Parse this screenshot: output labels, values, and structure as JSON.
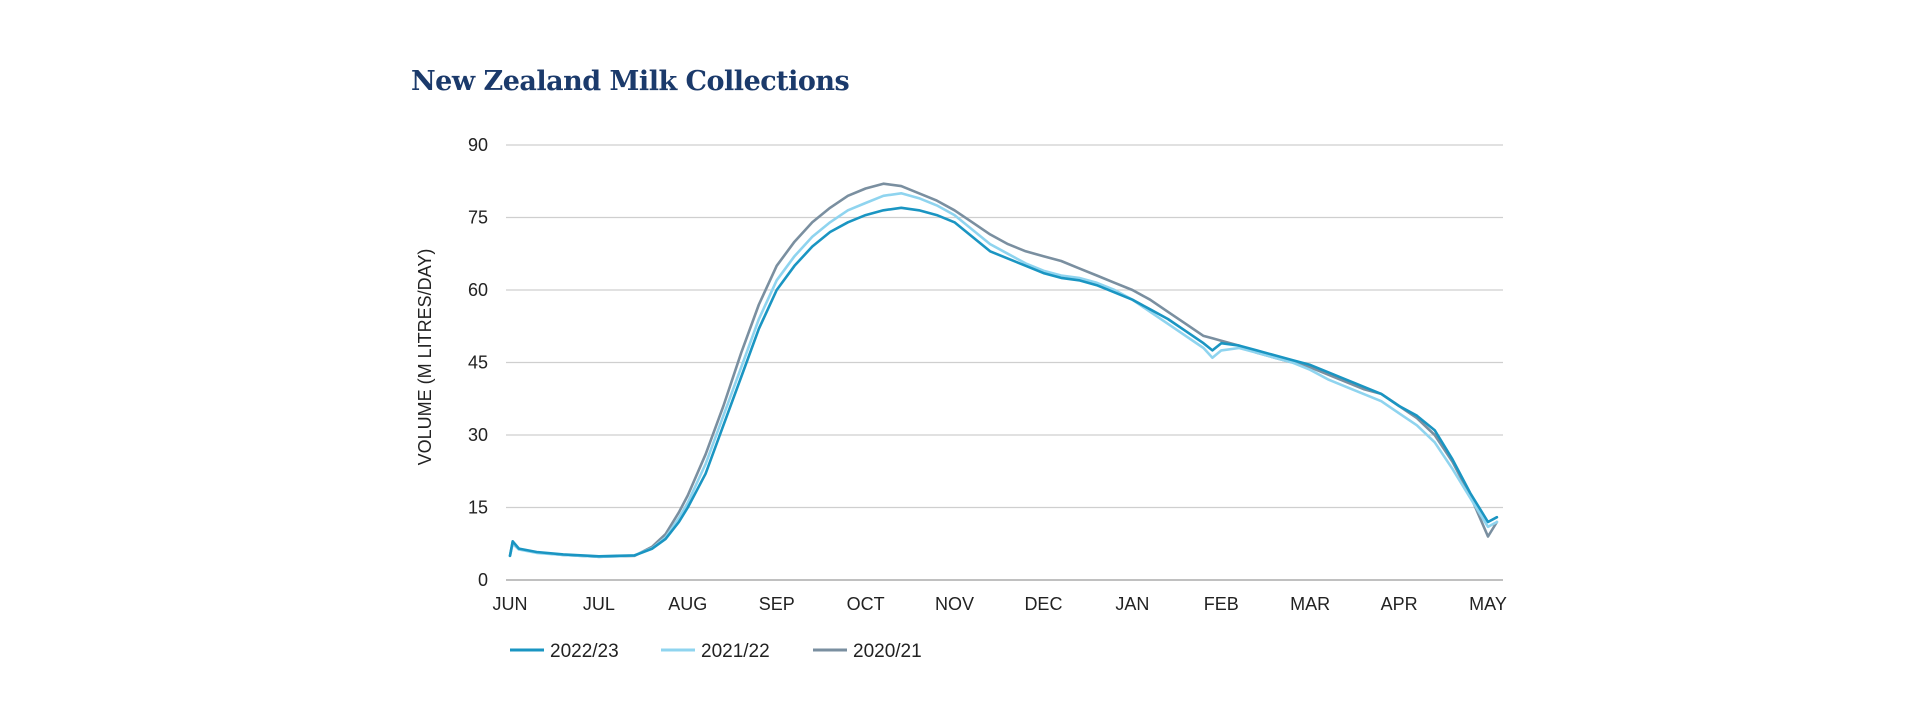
{
  "chart_data": {
    "type": "line",
    "title": "New Zealand Milk Collections",
    "ylabel": "VOLUME (M LITRES/DAY)",
    "xlabel": "",
    "ylim": [
      0,
      90
    ],
    "yticks": [
      0,
      15,
      30,
      45,
      60,
      75,
      90
    ],
    "categories": [
      "JUN",
      "JUL",
      "AUG",
      "SEP",
      "OCT",
      "NOV",
      "DEC",
      "JAN",
      "FEB",
      "MAR",
      "APR",
      "MAY"
    ],
    "grid": true,
    "legend_position": "bottom-left",
    "series": [
      {
        "name": "2022/23",
        "color": "#1a95c2",
        "x": [
          0,
          0.03,
          0.1,
          0.3,
          0.6,
          0.9,
          1.0,
          1.2,
          1.4,
          1.6,
          1.75,
          1.9,
          2.0,
          2.2,
          2.4,
          2.6,
          2.8,
          3.0,
          3.2,
          3.4,
          3.6,
          3.8,
          4.0,
          4.2,
          4.4,
          4.6,
          4.8,
          5.0,
          5.2,
          5.4,
          5.6,
          5.8,
          6.0,
          6.2,
          6.4,
          6.6,
          6.8,
          7.0,
          7.2,
          7.4,
          7.6,
          7.8,
          7.9,
          8.0,
          8.2,
          8.4,
          8.6,
          8.8,
          9.0,
          9.2,
          9.4,
          9.6,
          9.8,
          10.0,
          10.2,
          10.4,
          10.6,
          10.8,
          11.0,
          11.1
        ],
        "values": [
          5,
          8,
          6.5,
          5.8,
          5.3,
          5.0,
          4.9,
          5.0,
          5.1,
          6.5,
          8.5,
          12,
          15,
          22,
          32,
          42,
          52,
          60,
          65,
          69,
          72,
          74,
          75.5,
          76.5,
          77,
          76.5,
          75.5,
          74,
          71,
          68,
          66.5,
          65,
          63.5,
          62.5,
          62,
          61,
          59.5,
          58,
          56,
          54,
          51.5,
          49,
          47.5,
          49,
          48.5,
          47.5,
          46.5,
          45.5,
          44.5,
          43,
          41.5,
          40,
          38.5,
          36,
          34,
          31,
          25,
          18,
          12,
          13
        ]
      },
      {
        "name": "2021/22",
        "color": "#8fd4ef",
        "x": [
          0,
          0.03,
          0.1,
          0.3,
          0.6,
          0.9,
          1.0,
          1.2,
          1.4,
          1.6,
          1.75,
          1.9,
          2.0,
          2.2,
          2.4,
          2.6,
          2.8,
          3.0,
          3.2,
          3.4,
          3.6,
          3.8,
          4.0,
          4.2,
          4.4,
          4.6,
          4.8,
          5.0,
          5.2,
          5.4,
          5.6,
          5.8,
          6.0,
          6.2,
          6.4,
          6.6,
          6.8,
          7.0,
          7.2,
          7.4,
          7.6,
          7.8,
          7.9,
          8.0,
          8.2,
          8.4,
          8.6,
          8.8,
          9.0,
          9.2,
          9.4,
          9.6,
          9.8,
          10.0,
          10.2,
          10.4,
          10.6,
          10.8,
          11.0,
          11.1
        ],
        "values": [
          5,
          7.5,
          6.3,
          5.6,
          5.2,
          4.9,
          4.8,
          4.9,
          5.1,
          6.6,
          8.8,
          12.8,
          16,
          24,
          34,
          44,
          54,
          62,
          67,
          71,
          74,
          76.5,
          78,
          79.5,
          80,
          79,
          77.5,
          75.5,
          72.5,
          69.5,
          67.5,
          65.5,
          64,
          63,
          62.5,
          61.5,
          60,
          58,
          55.5,
          53,
          50.5,
          48,
          46,
          47.5,
          48,
          47,
          46,
          45,
          43.5,
          41.5,
          40,
          38.5,
          37,
          34.5,
          32,
          28.5,
          23,
          17,
          11,
          12
        ]
      },
      {
        "name": "2020/21",
        "color": "#7a8fa0",
        "x": [
          0,
          0.03,
          0.1,
          0.3,
          0.6,
          0.9,
          1.0,
          1.2,
          1.4,
          1.6,
          1.75,
          1.9,
          2.0,
          2.2,
          2.4,
          2.6,
          2.8,
          3.0,
          3.2,
          3.4,
          3.6,
          3.8,
          4.0,
          4.2,
          4.4,
          4.6,
          4.8,
          5.0,
          5.2,
          5.4,
          5.6,
          5.8,
          6.0,
          6.2,
          6.4,
          6.6,
          6.8,
          7.0,
          7.2,
          7.4,
          7.6,
          7.8,
          7.9,
          8.0,
          8.2,
          8.4,
          8.6,
          8.8,
          9.0,
          9.2,
          9.4,
          9.6,
          9.8,
          10.0,
          10.2,
          10.4,
          10.6,
          10.8,
          11.0,
          11.1
        ],
        "values": [
          5,
          7.8,
          6.4,
          5.7,
          5.2,
          4.9,
          4.8,
          4.9,
          5.0,
          6.9,
          9.5,
          14,
          17.5,
          26,
          36,
          47,
          57,
          65,
          70,
          74,
          77,
          79.5,
          81,
          82,
          81.5,
          80,
          78.5,
          76.5,
          74,
          71.5,
          69.5,
          68,
          67,
          66,
          64.5,
          63,
          61.5,
          60,
          58,
          55.5,
          53,
          50.5,
          50,
          49.5,
          48.5,
          47,
          46,
          45,
          44,
          42.5,
          41,
          39.5,
          38.5,
          36,
          33.5,
          30,
          24.5,
          17.5,
          9,
          12
        ]
      }
    ]
  }
}
